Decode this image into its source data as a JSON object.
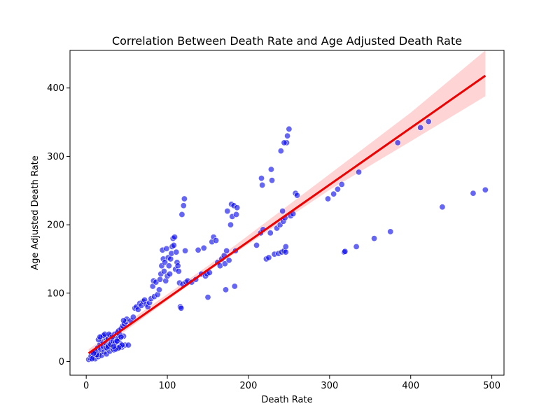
{
  "chart_data": {
    "type": "scatter",
    "title": "Correlation Between Death Rate and Age Adjusted Death Rate",
    "xlabel": "Death Rate",
    "ylabel": "Age Adjusted Death Rate",
    "xlim": [
      -20,
      515
    ],
    "ylim": [
      -20,
      455
    ],
    "xticks": [
      0,
      100,
      200,
      300,
      400,
      500
    ],
    "yticks": [
      0,
      100,
      200,
      300,
      400
    ],
    "grid": false,
    "points": [
      [
        3,
        3
      ],
      [
        5,
        5
      ],
      [
        6,
        8
      ],
      [
        8,
        10
      ],
      [
        9,
        6
      ],
      [
        10,
        13
      ],
      [
        11,
        4
      ],
      [
        12,
        9
      ],
      [
        13,
        16
      ],
      [
        14,
        20
      ],
      [
        15,
        7
      ],
      [
        16,
        12
      ],
      [
        17,
        25
      ],
      [
        18,
        18
      ],
      [
        19,
        9
      ],
      [
        20,
        30
      ],
      [
        21,
        22
      ],
      [
        22,
        14
      ],
      [
        23,
        35
      ],
      [
        24,
        27
      ],
      [
        25,
        11
      ],
      [
        26,
        19
      ],
      [
        27,
        33
      ],
      [
        28,
        24
      ],
      [
        29,
        15
      ],
      [
        30,
        38
      ],
      [
        31,
        28
      ],
      [
        32,
        20
      ],
      [
        33,
        36
      ],
      [
        34,
        17
      ],
      [
        35,
        40
      ],
      [
        36,
        31
      ],
      [
        37,
        23
      ],
      [
        38,
        42
      ],
      [
        39,
        19
      ],
      [
        40,
        45
      ],
      [
        41,
        34
      ],
      [
        42,
        26
      ],
      [
        43,
        48
      ],
      [
        44,
        21
      ],
      [
        45,
        52
      ],
      [
        46,
        37
      ],
      [
        47,
        55
      ],
      [
        48,
        24
      ],
      [
        49,
        58
      ],
      [
        50,
        62
      ],
      [
        52,
        24
      ],
      [
        55,
        60
      ],
      [
        58,
        65
      ],
      [
        60,
        78
      ],
      [
        62,
        80
      ],
      [
        64,
        76
      ],
      [
        66,
        85
      ],
      [
        68,
        82
      ],
      [
        70,
        88
      ],
      [
        72,
        90
      ],
      [
        74,
        84
      ],
      [
        76,
        80
      ],
      [
        78,
        86
      ],
      [
        80,
        92
      ],
      [
        82,
        110
      ],
      [
        83,
        118
      ],
      [
        84,
        95
      ],
      [
        86,
        116
      ],
      [
        88,
        98
      ],
      [
        90,
        105
      ],
      [
        91,
        120
      ],
      [
        92,
        128
      ],
      [
        93,
        140
      ],
      [
        94,
        163
      ],
      [
        95,
        150
      ],
      [
        96,
        132
      ],
      [
        97,
        145
      ],
      [
        98,
        118
      ],
      [
        99,
        165
      ],
      [
        100,
        125
      ],
      [
        101,
        152
      ],
      [
        102,
        140
      ],
      [
        103,
        128
      ],
      [
        104,
        150
      ],
      [
        105,
        158
      ],
      [
        106,
        168
      ],
      [
        107,
        180
      ],
      [
        108,
        170
      ],
      [
        109,
        182
      ],
      [
        110,
        135
      ],
      [
        111,
        160
      ],
      [
        112,
        145
      ],
      [
        113,
        140
      ],
      [
        114,
        132
      ],
      [
        115,
        115
      ],
      [
        116,
        80
      ],
      [
        117,
        78
      ],
      [
        118,
        215
      ],
      [
        119,
        113
      ],
      [
        120,
        228
      ],
      [
        121,
        238
      ],
      [
        122,
        162
      ],
      [
        123,
        116
      ],
      [
        125,
        118
      ],
      [
        130,
        116
      ],
      [
        135,
        120
      ],
      [
        138,
        163
      ],
      [
        142,
        128
      ],
      [
        145,
        166
      ],
      [
        147,
        125
      ],
      [
        149,
        128
      ],
      [
        150,
        94
      ],
      [
        152,
        130
      ],
      [
        155,
        175
      ],
      [
        157,
        182
      ],
      [
        160,
        177
      ],
      [
        162,
        145
      ],
      [
        165,
        140
      ],
      [
        167,
        150
      ],
      [
        170,
        155
      ],
      [
        171,
        143
      ],
      [
        172,
        105
      ],
      [
        173,
        162
      ],
      [
        174,
        220
      ],
      [
        176,
        148
      ],
      [
        178,
        200
      ],
      [
        179,
        230
      ],
      [
        180,
        212
      ],
      [
        182,
        228
      ],
      [
        183,
        110
      ],
      [
        184,
        162
      ],
      [
        185,
        215
      ],
      [
        186,
        225
      ],
      [
        210,
        170
      ],
      [
        215,
        188
      ],
      [
        216,
        268
      ],
      [
        217,
        258
      ],
      [
        218,
        193
      ],
      [
        222,
        150
      ],
      [
        225,
        152
      ],
      [
        227,
        188
      ],
      [
        228,
        281
      ],
      [
        229,
        265
      ],
      [
        232,
        157
      ],
      [
        235,
        195
      ],
      [
        237,
        158
      ],
      [
        239,
        200
      ],
      [
        241,
        160
      ],
      [
        243,
        205
      ],
      [
        244,
        162
      ],
      [
        245,
        210
      ],
      [
        246,
        168
      ],
      [
        247,
        320
      ],
      [
        248,
        330
      ],
      [
        250,
        340
      ],
      [
        252,
        213
      ],
      [
        255,
        216
      ],
      [
        258,
        246
      ],
      [
        260,
        243
      ],
      [
        298,
        238
      ],
      [
        305,
        245
      ],
      [
        310,
        252
      ],
      [
        315,
        259
      ],
      [
        318,
        160
      ],
      [
        319,
        161
      ],
      [
        333,
        168
      ],
      [
        336,
        277
      ],
      [
        355,
        180
      ],
      [
        375,
        190
      ],
      [
        384,
        320
      ],
      [
        412,
        342
      ],
      [
        422,
        351
      ],
      [
        439,
        226
      ],
      [
        477,
        246
      ],
      [
        492,
        251
      ],
      [
        240,
        308
      ],
      [
        242,
        220
      ],
      [
        246,
        160
      ],
      [
        244,
        320
      ],
      [
        19,
        36
      ],
      [
        21,
        38
      ],
      [
        23,
        40
      ],
      [
        25,
        20
      ],
      [
        27,
        22
      ],
      [
        30,
        25
      ],
      [
        33,
        30
      ],
      [
        36,
        28
      ],
      [
        39,
        34
      ],
      [
        41,
        40
      ],
      [
        43,
        36
      ],
      [
        15,
        32
      ],
      [
        17,
        36
      ],
      [
        13,
        10
      ],
      [
        11,
        15
      ],
      [
        9,
        12
      ],
      [
        7,
        4
      ],
      [
        28,
        40
      ],
      [
        32,
        36
      ],
      [
        38,
        30
      ],
      [
        42,
        22
      ],
      [
        46,
        60
      ],
      [
        44,
        24
      ],
      [
        40,
        20
      ],
      [
        36,
        18
      ],
      [
        34,
        22
      ]
    ],
    "regression": {
      "x_start": 3,
      "x_end": 492,
      "y_start": 12,
      "y_end": 418
    },
    "confidence_band": {
      "x": [
        3,
        150,
        300,
        400,
        492
      ],
      "lower": [
        6,
        132,
        251,
        322,
        388
      ],
      "upper": [
        18,
        140,
        274,
        364,
        455
      ]
    },
    "colors": {
      "points": "#0000ee",
      "point_edge": "#ffffff",
      "regression_line": "#ee0000",
      "band": "#ffcccc"
    }
  }
}
